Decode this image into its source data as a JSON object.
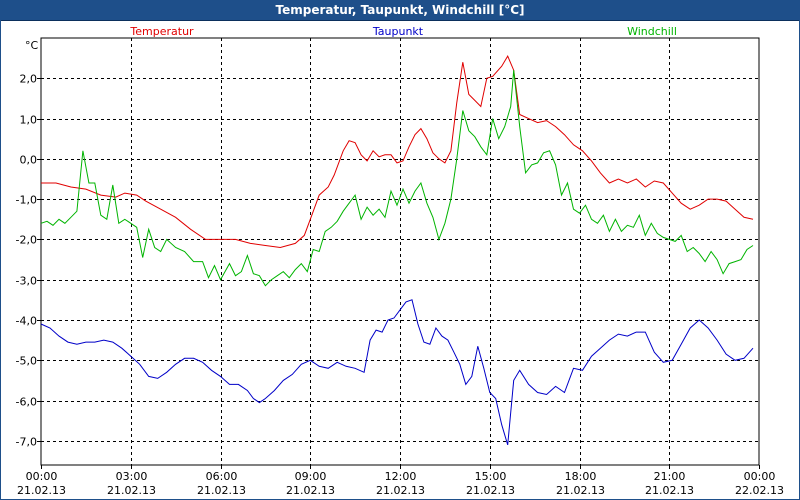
{
  "window": {
    "title": "Temperatur, Taupunkt, Windchill [°C]"
  },
  "chart_data": {
    "type": "line",
    "title": "Temperatur, Taupunkt, Windchill [°C]",
    "ylabel": "°C",
    "xlabel": "",
    "x_unit": "hours since 21.02.13 00:00",
    "xlim": [
      0,
      24
    ],
    "ylim": [
      -7.6,
      3.0
    ],
    "grid": true,
    "y_ticks": [
      2.0,
      1.0,
      0.0,
      -1.0,
      -2.0,
      -3.0,
      -4.0,
      -5.0,
      -6.0,
      -7.0
    ],
    "y_tick_labels": [
      "2,0",
      "1,0",
      "0,0",
      "-1,0",
      "-2,0",
      "-3,0",
      "-4,0",
      "-5,0",
      "-6,0",
      "-7,0"
    ],
    "x_ticks": [
      0,
      3,
      6,
      9,
      12,
      15,
      18,
      21,
      24
    ],
    "x_tick_labels": [
      [
        "00:00",
        "21.02.13"
      ],
      [
        "03:00",
        "21.02.13"
      ],
      [
        "06:00",
        "21.02.13"
      ],
      [
        "09:00",
        "21.02.13"
      ],
      [
        "12:00",
        "21.02.13"
      ],
      [
        "15:00",
        "21.02.13"
      ],
      [
        "18:00",
        "21.02.13"
      ],
      [
        "21:00",
        "21.02.13"
      ],
      [
        "00:00",
        "22.02.13"
      ]
    ],
    "legend_position": "top",
    "series": [
      {
        "name": "Temperatur",
        "color": "#e00000",
        "points": [
          [
            0,
            -0.6
          ],
          [
            0.5,
            -0.6
          ],
          [
            1,
            -0.7
          ],
          [
            1.5,
            -0.75
          ],
          [
            2,
            -0.9
          ],
          [
            2.5,
            -0.95
          ],
          [
            2.8,
            -0.85
          ],
          [
            3.2,
            -0.9
          ],
          [
            3.5,
            -1.05
          ],
          [
            4,
            -1.25
          ],
          [
            4.5,
            -1.45
          ],
          [
            5,
            -1.75
          ],
          [
            5.5,
            -2.0
          ],
          [
            6,
            -2.0
          ],
          [
            6.5,
            -2.0
          ],
          [
            7,
            -2.1
          ],
          [
            7.5,
            -2.15
          ],
          [
            8,
            -2.2
          ],
          [
            8.5,
            -2.1
          ],
          [
            8.8,
            -1.9
          ],
          [
            9,
            -1.5
          ],
          [
            9.3,
            -0.9
          ],
          [
            9.6,
            -0.7
          ],
          [
            9.8,
            -0.4
          ],
          [
            10.1,
            0.2
          ],
          [
            10.3,
            0.45
          ],
          [
            10.5,
            0.4
          ],
          [
            10.7,
            0.1
          ],
          [
            10.9,
            -0.05
          ],
          [
            11.1,
            0.2
          ],
          [
            11.3,
            0.05
          ],
          [
            11.5,
            0.1
          ],
          [
            11.7,
            0.1
          ],
          [
            11.9,
            -0.1
          ],
          [
            12.1,
            -0.05
          ],
          [
            12.3,
            0.3
          ],
          [
            12.5,
            0.6
          ],
          [
            12.7,
            0.75
          ],
          [
            12.9,
            0.5
          ],
          [
            13.1,
            0.15
          ],
          [
            13.3,
            0.0
          ],
          [
            13.5,
            -0.1
          ],
          [
            13.7,
            0.2
          ],
          [
            13.9,
            1.4
          ],
          [
            14.1,
            2.4
          ],
          [
            14.3,
            1.6
          ],
          [
            14.5,
            1.45
          ],
          [
            14.7,
            1.3
          ],
          [
            14.9,
            2.0
          ],
          [
            15.1,
            2.05
          ],
          [
            15.4,
            2.3
          ],
          [
            15.6,
            2.55
          ],
          [
            15.8,
            2.2
          ],
          [
            16.0,
            1.1
          ],
          [
            16.3,
            1.0
          ],
          [
            16.6,
            0.9
          ],
          [
            16.9,
            0.95
          ],
          [
            17.2,
            0.8
          ],
          [
            17.5,
            0.6
          ],
          [
            17.8,
            0.35
          ],
          [
            18.1,
            0.2
          ],
          [
            18.4,
            -0.05
          ],
          [
            18.7,
            -0.35
          ],
          [
            19.0,
            -0.6
          ],
          [
            19.3,
            -0.5
          ],
          [
            19.6,
            -0.6
          ],
          [
            19.9,
            -0.5
          ],
          [
            20.2,
            -0.7
          ],
          [
            20.5,
            -0.55
          ],
          [
            20.8,
            -0.6
          ],
          [
            21.1,
            -0.85
          ],
          [
            21.4,
            -1.1
          ],
          [
            21.7,
            -1.25
          ],
          [
            22.0,
            -1.15
          ],
          [
            22.3,
            -1.0
          ],
          [
            22.6,
            -1.0
          ],
          [
            22.9,
            -1.05
          ],
          [
            23.2,
            -1.25
          ],
          [
            23.5,
            -1.45
          ],
          [
            23.8,
            -1.5
          ]
        ]
      },
      {
        "name": "Taupunkt",
        "color": "#0000c8",
        "points": [
          [
            0,
            -4.1
          ],
          [
            0.3,
            -4.2
          ],
          [
            0.6,
            -4.4
          ],
          [
            0.9,
            -4.55
          ],
          [
            1.2,
            -4.6
          ],
          [
            1.5,
            -4.55
          ],
          [
            1.8,
            -4.55
          ],
          [
            2.1,
            -4.5
          ],
          [
            2.4,
            -4.55
          ],
          [
            2.7,
            -4.7
          ],
          [
            3.0,
            -4.9
          ],
          [
            3.3,
            -5.1
          ],
          [
            3.6,
            -5.4
          ],
          [
            3.9,
            -5.45
          ],
          [
            4.2,
            -5.3
          ],
          [
            4.5,
            -5.1
          ],
          [
            4.8,
            -4.95
          ],
          [
            5.1,
            -4.95
          ],
          [
            5.4,
            -5.05
          ],
          [
            5.7,
            -5.25
          ],
          [
            6.0,
            -5.4
          ],
          [
            6.3,
            -5.6
          ],
          [
            6.6,
            -5.6
          ],
          [
            6.9,
            -5.75
          ],
          [
            7.1,
            -5.95
          ],
          [
            7.3,
            -6.05
          ],
          [
            7.5,
            -5.95
          ],
          [
            7.8,
            -5.75
          ],
          [
            8.1,
            -5.5
          ],
          [
            8.4,
            -5.35
          ],
          [
            8.7,
            -5.1
          ],
          [
            9.0,
            -5.0
          ],
          [
            9.3,
            -5.15
          ],
          [
            9.6,
            -5.2
          ],
          [
            9.9,
            -5.05
          ],
          [
            10.2,
            -5.15
          ],
          [
            10.5,
            -5.2
          ],
          [
            10.8,
            -5.3
          ],
          [
            11.0,
            -4.5
          ],
          [
            11.2,
            -4.25
          ],
          [
            11.4,
            -4.3
          ],
          [
            11.6,
            -4.0
          ],
          [
            11.8,
            -3.95
          ],
          [
            12.0,
            -3.75
          ],
          [
            12.2,
            -3.55
          ],
          [
            12.4,
            -3.5
          ],
          [
            12.6,
            -4.1
          ],
          [
            12.8,
            -4.55
          ],
          [
            13.0,
            -4.6
          ],
          [
            13.2,
            -4.2
          ],
          [
            13.4,
            -4.4
          ],
          [
            13.6,
            -4.5
          ],
          [
            13.8,
            -4.8
          ],
          [
            14.0,
            -5.1
          ],
          [
            14.2,
            -5.6
          ],
          [
            14.4,
            -5.4
          ],
          [
            14.6,
            -4.65
          ],
          [
            14.8,
            -5.2
          ],
          [
            15.0,
            -5.8
          ],
          [
            15.2,
            -5.95
          ],
          [
            15.4,
            -6.6
          ],
          [
            15.6,
            -7.1
          ],
          [
            15.8,
            -5.5
          ],
          [
            16.0,
            -5.25
          ],
          [
            16.3,
            -5.6
          ],
          [
            16.6,
            -5.8
          ],
          [
            16.9,
            -5.85
          ],
          [
            17.2,
            -5.65
          ],
          [
            17.5,
            -5.8
          ],
          [
            17.8,
            -5.2
          ],
          [
            18.1,
            -5.25
          ],
          [
            18.4,
            -4.9
          ],
          [
            18.7,
            -4.7
          ],
          [
            19.0,
            -4.5
          ],
          [
            19.3,
            -4.35
          ],
          [
            19.6,
            -4.4
          ],
          [
            19.9,
            -4.3
          ],
          [
            20.2,
            -4.3
          ],
          [
            20.5,
            -4.8
          ],
          [
            20.8,
            -5.05
          ],
          [
            21.1,
            -5.0
          ],
          [
            21.4,
            -4.6
          ],
          [
            21.7,
            -4.2
          ],
          [
            22.0,
            -4.0
          ],
          [
            22.3,
            -4.2
          ],
          [
            22.6,
            -4.5
          ],
          [
            22.9,
            -4.85
          ],
          [
            23.2,
            -5.0
          ],
          [
            23.5,
            -4.95
          ],
          [
            23.8,
            -4.7
          ]
        ]
      },
      {
        "name": "Windchill",
        "color": "#00b400",
        "points": [
          [
            0,
            -1.6
          ],
          [
            0.2,
            -1.55
          ],
          [
            0.4,
            -1.65
          ],
          [
            0.6,
            -1.5
          ],
          [
            0.8,
            -1.6
          ],
          [
            1.0,
            -1.45
          ],
          [
            1.2,
            -1.3
          ],
          [
            1.4,
            0.2
          ],
          [
            1.6,
            -0.6
          ],
          [
            1.8,
            -0.6
          ],
          [
            2.0,
            -1.4
          ],
          [
            2.2,
            -1.5
          ],
          [
            2.4,
            -0.65
          ],
          [
            2.6,
            -1.6
          ],
          [
            2.8,
            -1.5
          ],
          [
            3.0,
            -1.6
          ],
          [
            3.2,
            -1.7
          ],
          [
            3.4,
            -2.45
          ],
          [
            3.6,
            -1.75
          ],
          [
            3.8,
            -2.2
          ],
          [
            4.0,
            -2.3
          ],
          [
            4.2,
            -2.0
          ],
          [
            4.5,
            -2.2
          ],
          [
            4.8,
            -2.3
          ],
          [
            5.1,
            -2.55
          ],
          [
            5.4,
            -2.55
          ],
          [
            5.6,
            -2.95
          ],
          [
            5.8,
            -2.65
          ],
          [
            6.0,
            -3.0
          ],
          [
            6.3,
            -2.6
          ],
          [
            6.5,
            -2.9
          ],
          [
            6.7,
            -2.8
          ],
          [
            6.9,
            -2.4
          ],
          [
            7.1,
            -2.85
          ],
          [
            7.3,
            -2.9
          ],
          [
            7.5,
            -3.15
          ],
          [
            7.7,
            -3.0
          ],
          [
            7.9,
            -2.9
          ],
          [
            8.1,
            -2.8
          ],
          [
            8.3,
            -2.95
          ],
          [
            8.5,
            -2.75
          ],
          [
            8.7,
            -2.6
          ],
          [
            8.9,
            -2.8
          ],
          [
            9.1,
            -2.25
          ],
          [
            9.3,
            -2.3
          ],
          [
            9.5,
            -1.8
          ],
          [
            9.7,
            -1.7
          ],
          [
            9.9,
            -1.55
          ],
          [
            10.1,
            -1.3
          ],
          [
            10.3,
            -1.1
          ],
          [
            10.5,
            -0.9
          ],
          [
            10.7,
            -1.5
          ],
          [
            10.9,
            -1.2
          ],
          [
            11.1,
            -1.4
          ],
          [
            11.3,
            -1.25
          ],
          [
            11.5,
            -1.45
          ],
          [
            11.7,
            -0.8
          ],
          [
            11.9,
            -1.15
          ],
          [
            12.1,
            -0.75
          ],
          [
            12.3,
            -1.1
          ],
          [
            12.5,
            -0.8
          ],
          [
            12.7,
            -0.6
          ],
          [
            12.9,
            -1.1
          ],
          [
            13.1,
            -1.45
          ],
          [
            13.3,
            -2.0
          ],
          [
            13.5,
            -1.6
          ],
          [
            13.7,
            -1.0
          ],
          [
            13.9,
            0.0
          ],
          [
            14.1,
            1.2
          ],
          [
            14.3,
            0.7
          ],
          [
            14.5,
            0.55
          ],
          [
            14.7,
            0.3
          ],
          [
            14.9,
            0.1
          ],
          [
            15.1,
            1.0
          ],
          [
            15.3,
            0.5
          ],
          [
            15.5,
            0.8
          ],
          [
            15.7,
            1.3
          ],
          [
            15.8,
            2.2
          ],
          [
            16.0,
            0.8
          ],
          [
            16.2,
            -0.35
          ],
          [
            16.4,
            -0.15
          ],
          [
            16.6,
            -0.1
          ],
          [
            16.8,
            0.15
          ],
          [
            17.0,
            0.2
          ],
          [
            17.2,
            -0.15
          ],
          [
            17.4,
            -0.9
          ],
          [
            17.6,
            -0.6
          ],
          [
            17.8,
            -1.25
          ],
          [
            18.0,
            -1.35
          ],
          [
            18.2,
            -1.15
          ],
          [
            18.4,
            -1.5
          ],
          [
            18.6,
            -1.6
          ],
          [
            18.8,
            -1.4
          ],
          [
            19.0,
            -1.8
          ],
          [
            19.2,
            -1.5
          ],
          [
            19.4,
            -1.8
          ],
          [
            19.6,
            -1.65
          ],
          [
            19.8,
            -1.7
          ],
          [
            20.0,
            -1.4
          ],
          [
            20.2,
            -1.9
          ],
          [
            20.4,
            -1.6
          ],
          [
            20.6,
            -1.85
          ],
          [
            20.8,
            -1.95
          ],
          [
            21.0,
            -2.0
          ],
          [
            21.2,
            -2.05
          ],
          [
            21.4,
            -1.9
          ],
          [
            21.6,
            -2.3
          ],
          [
            21.8,
            -2.2
          ],
          [
            22.0,
            -2.35
          ],
          [
            22.2,
            -2.55
          ],
          [
            22.4,
            -2.3
          ],
          [
            22.6,
            -2.5
          ],
          [
            22.8,
            -2.85
          ],
          [
            23.0,
            -2.6
          ],
          [
            23.2,
            -2.55
          ],
          [
            23.4,
            -2.5
          ],
          [
            23.6,
            -2.25
          ],
          [
            23.8,
            -2.15
          ]
        ]
      }
    ]
  }
}
